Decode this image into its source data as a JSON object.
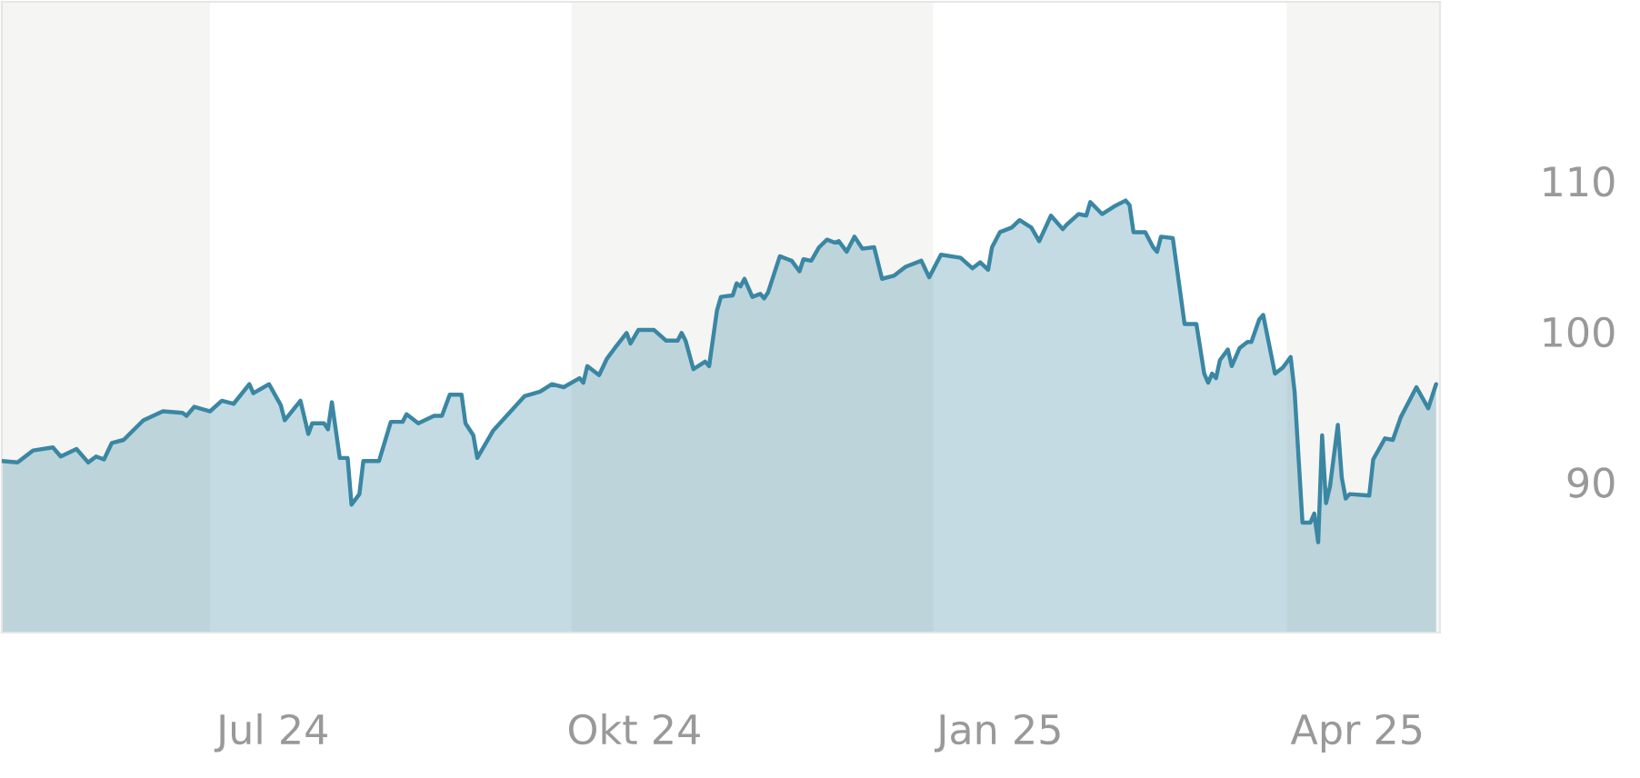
{
  "chart_data": {
    "type": "area",
    "x": [
      "2024-05-09",
      "2024-05-13",
      "2024-05-17",
      "2024-05-22",
      "2024-05-24",
      "2024-05-28",
      "2024-05-31",
      "2024-06-02",
      "2024-06-04",
      "2024-06-06",
      "2024-06-09",
      "2024-06-14",
      "2024-06-19",
      "2024-06-24",
      "2024-06-25",
      "2024-06-27",
      "2024-07-01",
      "2024-07-04",
      "2024-07-07",
      "2024-07-11",
      "2024-07-12",
      "2024-07-16",
      "2024-07-19",
      "2024-07-20",
      "2024-07-24",
      "2024-07-26",
      "2024-07-27",
      "2024-07-30",
      "2024-07-31",
      "2024-08-01",
      "2024-08-03",
      "2024-08-05",
      "2024-08-06",
      "2024-08-08",
      "2024-08-09",
      "2024-08-13",
      "2024-08-16",
      "2024-08-19",
      "2024-08-20",
      "2024-08-23",
      "2024-08-27",
      "2024-08-29",
      "2024-08-31",
      "2024-09-03",
      "2024-09-04",
      "2024-09-06",
      "2024-09-07",
      "2024-09-11",
      "2024-09-19",
      "2024-09-23",
      "2024-09-26",
      "2024-09-29",
      "2024-10-03",
      "2024-10-04",
      "2024-10-05",
      "2024-10-08",
      "2024-10-10",
      "2024-10-12",
      "2024-10-15",
      "2024-10-16",
      "2024-10-18",
      "2024-10-22",
      "2024-10-25",
      "2024-10-28",
      "2024-10-29",
      "2024-10-30",
      "2024-11-01",
      "2024-11-04",
      "2024-11-05",
      "2024-11-07",
      "2024-11-08",
      "2024-11-11",
      "2024-11-12",
      "2024-11-13",
      "2024-11-14",
      "2024-11-16",
      "2024-11-18",
      "2024-11-19",
      "2024-11-20",
      "2024-11-23",
      "2024-11-25",
      "2024-11-26",
      "2024-11-28",
      "2024-11-29",
      "2024-12-01",
      "2024-12-03",
      "2024-12-05",
      "2024-12-07",
      "2024-12-08",
      "2024-12-10",
      "2024-12-12",
      "2024-12-14",
      "2024-12-17",
      "2024-12-19",
      "2024-12-22",
      "2024-12-25",
      "2024-12-29",
      "2024-12-31",
      "2025-01-03",
      "2025-01-08",
      "2025-01-11",
      "2025-01-13",
      "2025-01-15",
      "2025-01-16",
      "2025-01-18",
      "2025-01-21",
      "2025-01-23",
      "2025-01-26",
      "2025-01-28",
      "2025-01-31",
      "2025-02-03",
      "2025-02-04",
      "2025-02-07",
      "2025-02-09",
      "2025-02-10",
      "2025-02-13",
      "2025-02-16",
      "2025-02-19",
      "2025-02-20",
      "2025-02-21",
      "2025-02-24",
      "2025-02-26",
      "2025-02-27",
      "2025-02-28",
      "2025-03-03",
      "2025-03-05",
      "2025-03-06",
      "2025-03-09",
      "2025-03-11",
      "2025-03-12",
      "2025-03-13",
      "2025-03-14",
      "2025-03-15",
      "2025-03-17",
      "2025-03-18",
      "2025-03-20",
      "2025-03-22",
      "2025-03-23",
      "2025-03-25",
      "2025-03-26",
      "2025-03-27",
      "2025-03-29",
      "2025-03-31",
      "2025-04-02",
      "2025-04-03",
      "2025-04-05",
      "2025-04-07",
      "2025-04-08",
      "2025-04-09",
      "2025-04-10",
      "2025-04-11",
      "2025-04-12",
      "2025-04-14",
      "2025-04-15",
      "2025-04-16",
      "2025-04-17",
      "2025-04-22",
      "2025-04-23",
      "2025-04-26",
      "2025-04-28",
      "2025-04-30",
      "2025-05-03",
      "2025-05-04",
      "2025-05-07",
      "2025-05-09"
    ],
    "series": [
      {
        "color": "#3a87a4",
        "values": [
          91.4,
          91.3,
          92.1,
          92.3,
          91.7,
          92.2,
          91.3,
          91.7,
          91.5,
          92.6,
          92.8,
          94.1,
          94.7,
          94.6,
          94.4,
          95.0,
          94.7,
          95.4,
          95.2,
          96.5,
          95.9,
          96.5,
          95.1,
          94.1,
          95.4,
          93.2,
          93.9,
          93.9,
          93.5,
          95.3,
          91.6,
          91.6,
          88.5,
          89.2,
          91.4,
          91.4,
          94.0,
          94.0,
          94.5,
          93.9,
          94.4,
          94.4,
          95.8,
          95.8,
          93.9,
          93.1,
          91.6,
          93.4,
          95.7,
          96.0,
          96.5,
          96.3,
          96.9,
          96.6,
          97.7,
          97.1,
          98.2,
          98.9,
          99.9,
          99.2,
          100.1,
          100.1,
          99.4,
          99.4,
          99.9,
          99.4,
          97.5,
          98.0,
          97.7,
          101.4,
          102.3,
          102.4,
          103.2,
          103.0,
          103.5,
          102.3,
          102.5,
          102.2,
          102.6,
          105.0,
          104.8,
          104.7,
          104.0,
          104.8,
          104.7,
          105.6,
          106.1,
          105.9,
          106.0,
          105.3,
          106.3,
          105.5,
          105.6,
          103.5,
          103.7,
          104.3,
          104.7,
          103.6,
          105.1,
          104.9,
          104.2,
          104.6,
          104.1,
          105.6,
          106.6,
          106.9,
          107.4,
          106.9,
          106.0,
          107.7,
          106.8,
          107.1,
          107.8,
          107.7,
          108.6,
          107.8,
          108.3,
          108.7,
          108.4,
          106.6,
          106.6,
          105.6,
          105.3,
          106.3,
          106.2,
          102.4,
          100.5,
          100.5,
          97.2,
          96.6,
          97.2,
          96.9,
          98.1,
          98.8,
          97.7,
          98.9,
          99.3,
          99.3,
          100.8,
          101.1,
          99.8,
          97.2,
          97.6,
          98.3,
          96.0,
          87.3,
          87.3,
          87.9,
          86.0,
          93.1,
          88.6,
          89.7,
          93.8,
          90.3,
          88.9,
          89.2,
          89.1,
          91.5,
          92.9,
          92.8,
          94.3,
          95.8,
          96.3,
          94.9,
          96.5
        ]
      }
    ],
    "xlim": [
      "2024-05-09",
      "2025-05-10"
    ],
    "xticks": [
      {
        "value": "2024-07-17",
        "label": "Jul 24"
      },
      {
        "value": "2024-10-17",
        "label": "Okt 24"
      },
      {
        "value": "2025-01-18",
        "label": "Jan 25"
      },
      {
        "value": "2025-04-19",
        "label": "Apr 25"
      }
    ],
    "ylim": [
      80,
      121.9
    ],
    "yticks": [
      90,
      100,
      110
    ],
    "bands": [
      {
        "axis": "x",
        "from": "2024-05-09",
        "to": "2024-07-01",
        "color": "#f5f5f3"
      },
      {
        "axis": "x",
        "from": "2024-10-01",
        "to": "2025-01-01",
        "color": "#f5f5f3"
      },
      {
        "axis": "x",
        "from": "2025-04-01",
        "to": "2025-05-10",
        "color": "#f5f5f3"
      }
    ],
    "grid": false
  }
}
